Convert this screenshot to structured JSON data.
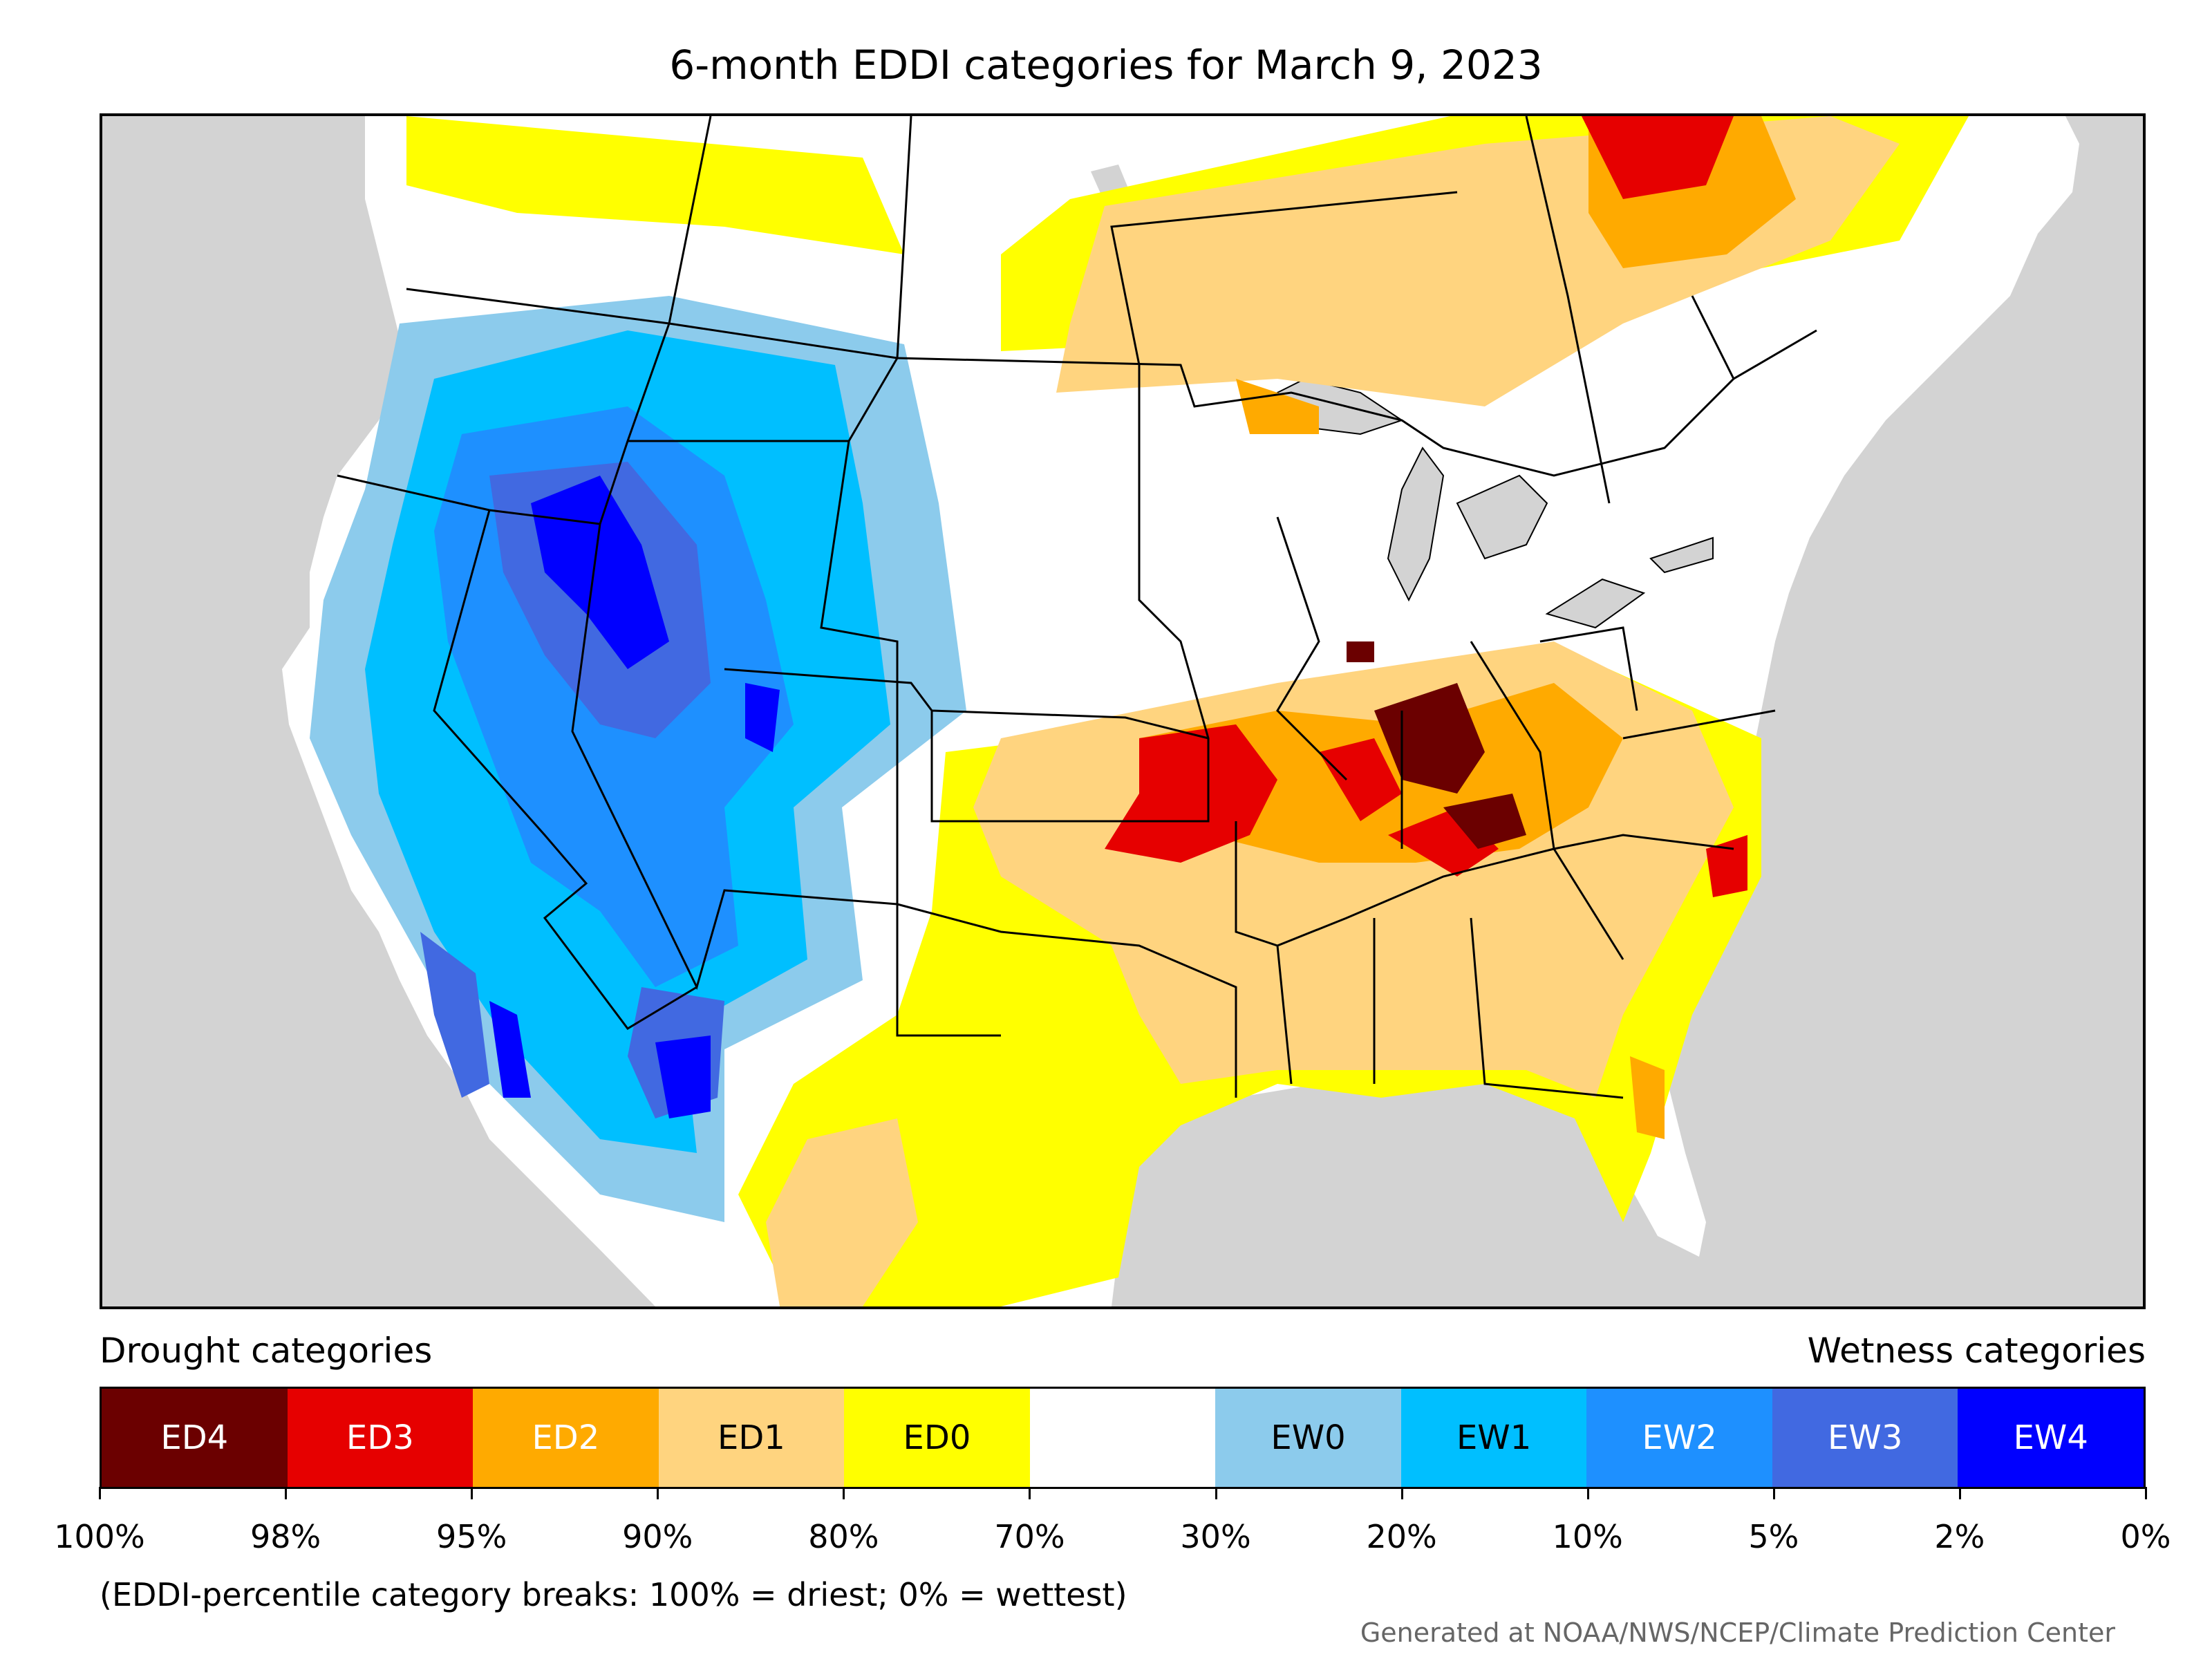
{
  "title": "6-month EDDI categories for March 9, 2023",
  "legend": {
    "drought_heading": "Drought categories",
    "wetness_heading": "Wetness categories",
    "categories": [
      {
        "label": "ED4",
        "color": "#6b0000",
        "text_color": "#ffffff"
      },
      {
        "label": "ED3",
        "color": "#e60000",
        "text_color": "#ffffff"
      },
      {
        "label": "ED2",
        "color": "#ffaa00",
        "text_color": "#ffffff"
      },
      {
        "label": "ED1",
        "color": "#ffd47f",
        "text_color": "#000000"
      },
      {
        "label": "ED0",
        "color": "#ffff00",
        "text_color": "#000000"
      },
      {
        "label": "",
        "color": "#ffffff",
        "text_color": "#000000"
      },
      {
        "label": "EW0",
        "color": "#8ccbec",
        "text_color": "#000000"
      },
      {
        "label": "EW1",
        "color": "#00bfff",
        "text_color": "#000000"
      },
      {
        "label": "EW2",
        "color": "#1e90ff",
        "text_color": "#ffffff"
      },
      {
        "label": "EW3",
        "color": "#4169e1",
        "text_color": "#ffffff"
      },
      {
        "label": "EW4",
        "color": "#0000ff",
        "text_color": "#ffffff"
      }
    ],
    "breaks": [
      "100%",
      "98%",
      "95%",
      "90%",
      "80%",
      "70%",
      "30%",
      "20%",
      "10%",
      "5%",
      "2%",
      "0%"
    ]
  },
  "note": "(EDDI-percentile category breaks: 100% = driest; 0% = wettest)",
  "credit": "Generated at NOAA/NWS/NCEP/Climate Prediction Center",
  "colors": {
    "ocean_background": "#d3d3d3",
    "land_default": "#ffffff",
    "boundary": "#000000"
  }
}
